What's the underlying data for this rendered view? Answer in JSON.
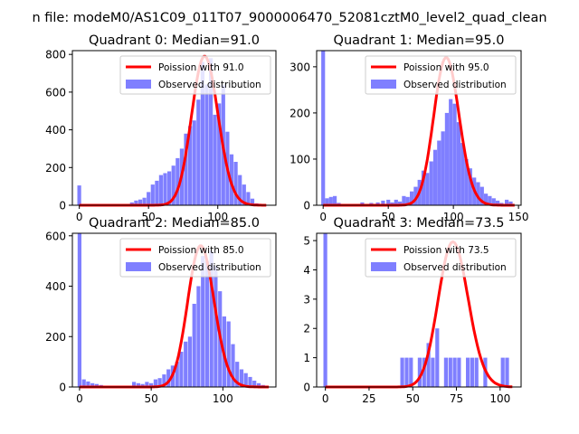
{
  "figure": {
    "suptitle": "n file: modeM0/AS1C09_011T07_9000006470_52081cztM0_level2_quad_clean"
  },
  "chart_data": [
    {
      "type": "bar",
      "title": "Quadrant 0: Median=91.0",
      "xlim": [
        -5,
        142
      ],
      "ylim": [
        0,
        820
      ],
      "xticks": [
        0,
        50,
        100
      ],
      "yticks": [
        0,
        200,
        400,
        600,
        800
      ],
      "legend": [
        "Poission with 91.0",
        "Observed distribution"
      ],
      "bins": [
        [
          0,
          105
        ],
        [
          35,
          5
        ],
        [
          38,
          15
        ],
        [
          41,
          25
        ],
        [
          44,
          30
        ],
        [
          47,
          40
        ],
        [
          50,
          70
        ],
        [
          53,
          110
        ],
        [
          56,
          130
        ],
        [
          59,
          160
        ],
        [
          62,
          170
        ],
        [
          65,
          180
        ],
        [
          68,
          210
        ],
        [
          71,
          250
        ],
        [
          74,
          300
        ],
        [
          77,
          380
        ],
        [
          80,
          420
        ],
        [
          83,
          450
        ],
        [
          86,
          560
        ],
        [
          89,
          760
        ],
        [
          92,
          640
        ],
        [
          95,
          780
        ],
        [
          98,
          480
        ],
        [
          101,
          540
        ],
        [
          104,
          640
        ],
        [
          107,
          390
        ],
        [
          110,
          270
        ],
        [
          113,
          230
        ],
        [
          116,
          160
        ],
        [
          119,
          110
        ],
        [
          122,
          70
        ],
        [
          125,
          35
        ],
        [
          128,
          10
        ]
      ],
      "curve_mu": 91.0,
      "curve_peak": 790,
      "curve_range": [
        0,
        135
      ]
    },
    {
      "type": "bar",
      "title": "Quadrant 1: Median=95.0",
      "xlim": [
        -5,
        152
      ],
      "ylim": [
        0,
        335
      ],
      "xticks": [
        0,
        50,
        100,
        150
      ],
      "yticks": [
        0,
        100,
        200,
        300
      ],
      "legend": [
        "Poission with 95.0",
        "Observed distribution"
      ],
      "bins": [
        [
          0,
          335
        ],
        [
          3,
          15
        ],
        [
          6,
          18
        ],
        [
          9,
          20
        ],
        [
          12,
          5
        ],
        [
          20,
          3
        ],
        [
          30,
          6
        ],
        [
          37,
          5
        ],
        [
          42,
          6
        ],
        [
          46,
          10
        ],
        [
          50,
          12
        ],
        [
          53,
          6
        ],
        [
          56,
          12
        ],
        [
          59,
          8
        ],
        [
          62,
          20
        ],
        [
          65,
          18
        ],
        [
          68,
          30
        ],
        [
          71,
          40
        ],
        [
          74,
          55
        ],
        [
          77,
          75
        ],
        [
          80,
          70
        ],
        [
          83,
          95
        ],
        [
          86,
          120
        ],
        [
          89,
          140
        ],
        [
          92,
          160
        ],
        [
          95,
          200
        ],
        [
          98,
          230
        ],
        [
          101,
          220
        ],
        [
          104,
          180
        ],
        [
          107,
          135
        ],
        [
          110,
          100
        ],
        [
          113,
          80
        ],
        [
          116,
          60
        ],
        [
          119,
          50
        ],
        [
          122,
          40
        ],
        [
          125,
          25
        ],
        [
          128,
          20
        ],
        [
          131,
          15
        ],
        [
          134,
          10
        ],
        [
          137,
          5
        ],
        [
          141,
          12
        ],
        [
          144,
          8
        ]
      ],
      "curve_mu": 95.0,
      "curve_peak": 320,
      "curve_range": [
        0,
        147
      ]
    },
    {
      "type": "bar",
      "title": "Quadrant 2: Median=85.0",
      "xlim": [
        -5,
        137
      ],
      "ylim": [
        0,
        610
      ],
      "xticks": [
        0,
        50,
        100
      ],
      "yticks": [
        0,
        200,
        400,
        600
      ],
      "legend": [
        "Poission with 85.0",
        "Observed distribution"
      ],
      "bins": [
        [
          0,
          610
        ],
        [
          3,
          30
        ],
        [
          6,
          22
        ],
        [
          9,
          15
        ],
        [
          12,
          12
        ],
        [
          15,
          8
        ],
        [
          18,
          5
        ],
        [
          22,
          4
        ],
        [
          26,
          3
        ],
        [
          30,
          3
        ],
        [
          34,
          4
        ],
        [
          38,
          20
        ],
        [
          41,
          15
        ],
        [
          44,
          12
        ],
        [
          47,
          20
        ],
        [
          50,
          15
        ],
        [
          53,
          30
        ],
        [
          56,
          35
        ],
        [
          59,
          50
        ],
        [
          62,
          70
        ],
        [
          65,
          85
        ],
        [
          68,
          100
        ],
        [
          71,
          140
        ],
        [
          74,
          180
        ],
        [
          77,
          200
        ],
        [
          80,
          330
        ],
        [
          83,
          400
        ],
        [
          86,
          520
        ],
        [
          89,
          500
        ],
        [
          92,
          540
        ],
        [
          95,
          480
        ],
        [
          98,
          380
        ],
        [
          101,
          280
        ],
        [
          104,
          260
        ],
        [
          107,
          170
        ],
        [
          110,
          100
        ],
        [
          113,
          70
        ],
        [
          116,
          55
        ],
        [
          119,
          40
        ],
        [
          122,
          25
        ],
        [
          125,
          15
        ],
        [
          128,
          8
        ]
      ],
      "curve_mu": 85.0,
      "curve_peak": 560,
      "curve_range": [
        0,
        132
      ]
    },
    {
      "type": "bar",
      "title": "Quadrant 3: Median=73.5",
      "xlim": [
        -5,
        112
      ],
      "ylim": [
        0,
        5.25
      ],
      "xticks": [
        0,
        25,
        50,
        75,
        100
      ],
      "yticks": [
        0,
        1,
        2,
        3,
        4,
        5
      ],
      "legend": [
        "Poission with 73.5",
        "Observed distribution"
      ],
      "bins": [
        [
          0,
          5.25
        ],
        [
          44,
          1
        ],
        [
          46.5,
          1
        ],
        [
          49,
          1
        ],
        [
          51.5,
          0
        ],
        [
          54,
          1
        ],
        [
          56.5,
          1
        ],
        [
          59,
          1.5
        ],
        [
          61.5,
          1
        ],
        [
          64,
          2
        ],
        [
          66.5,
          0
        ],
        [
          69,
          1
        ],
        [
          71.5,
          1
        ],
        [
          74,
          1
        ],
        [
          76.5,
          1
        ],
        [
          79,
          0
        ],
        [
          81.5,
          1
        ],
        [
          84,
          1
        ],
        [
          86.5,
          1
        ],
        [
          89,
          0
        ],
        [
          91.5,
          1
        ],
        [
          94,
          0
        ],
        [
          96.5,
          0
        ],
        [
          99,
          0
        ],
        [
          101.5,
          1
        ],
        [
          104,
          1
        ]
      ],
      "curve_mu": 73.5,
      "curve_peak": 4.95,
      "curve_range": [
        0,
        107
      ]
    }
  ]
}
